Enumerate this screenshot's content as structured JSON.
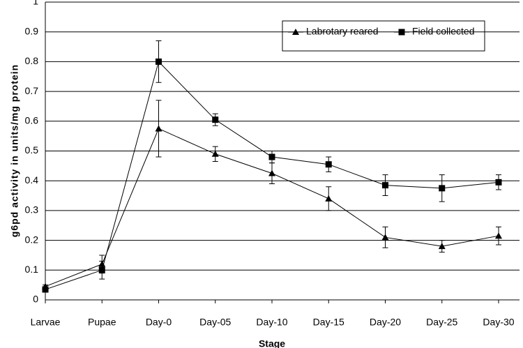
{
  "chart_data": {
    "type": "line",
    "x_label": "Stage",
    "y_label": "g6pd activity in units/mg protein",
    "categories": [
      "Larvae",
      "Pupae",
      "Day-0",
      "Day-05",
      "Day-10",
      "Day-15",
      "Day-20",
      "Day-25",
      "Day-30"
    ],
    "series": [
      {
        "name": "Labrotary reared",
        "color": "#000000",
        "marker": "triangle",
        "values": [
          0.045,
          0.12,
          0.575,
          0.49,
          0.425,
          0.34,
          0.21,
          0.18,
          0.215
        ],
        "errors": [
          0.005,
          0.03,
          0.095,
          0.025,
          0.035,
          0.04,
          0.035,
          0.02,
          0.03
        ]
      },
      {
        "name": "Field collected",
        "color": "#000000",
        "marker": "square",
        "values": [
          0.035,
          0.1,
          0.8,
          0.605,
          0.48,
          0.455,
          0.385,
          0.375,
          0.395
        ],
        "errors": [
          0.005,
          0.03,
          0.07,
          0.02,
          0.02,
          0.025,
          0.035,
          0.045,
          0.025
        ]
      }
    ],
    "ylim": [
      0,
      1
    ],
    "yticks": [
      0,
      0.1,
      0.2,
      0.3,
      0.4,
      0.5,
      0.6,
      0.7,
      0.8,
      0.9,
      1
    ],
    "grid": true,
    "legend": "top-right"
  }
}
